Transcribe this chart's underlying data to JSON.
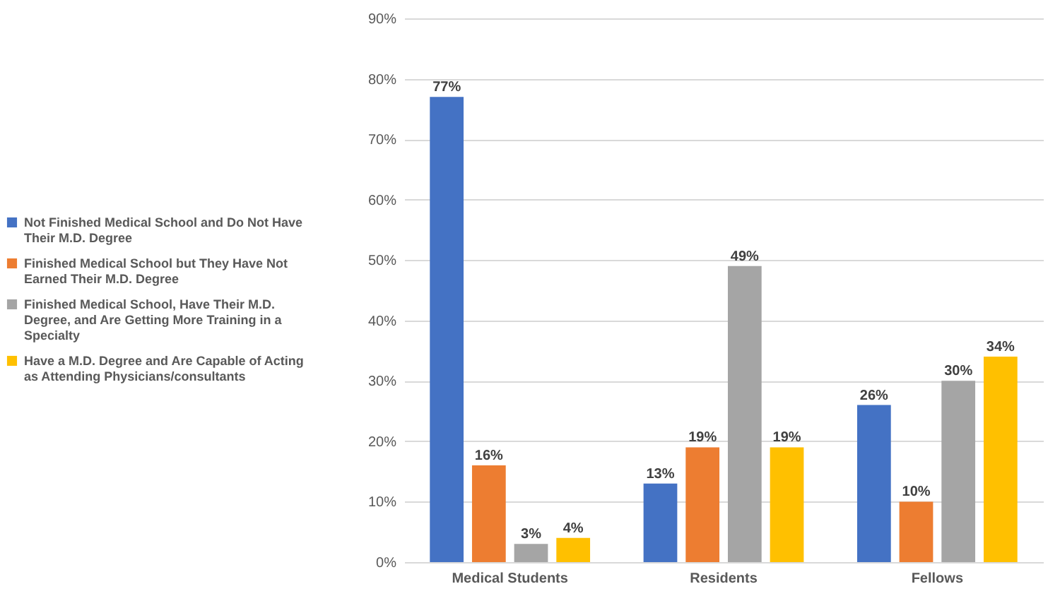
{
  "chart_data": {
    "type": "bar",
    "categories": [
      "Medical Students",
      "Residents",
      "Fellows"
    ],
    "series": [
      {
        "name": "Not Finished Medical School and Do Not Have Their M.D. Degree",
        "color": "#4472c4",
        "values": [
          77,
          13,
          26
        ],
        "value_labels": [
          "77%",
          "13%",
          "26%"
        ]
      },
      {
        "name": "Finished Medical School but They Have Not Earned Their M.D. Degree",
        "color": "#ed7d31",
        "values": [
          16,
          19,
          10
        ],
        "value_labels": [
          "16%",
          "19%",
          "10%"
        ]
      },
      {
        "name": "Finished Medical School, Have Their M.D. Degree, and Are Getting More Training in a Specialty",
        "color": "#a5a5a5",
        "values": [
          3,
          49,
          30
        ],
        "value_labels": [
          "3%",
          "49%",
          "30%"
        ]
      },
      {
        "name": "Have a M.D. Degree and Are Capable of Acting as Attending Physicians/consultants",
        "color": "#ffc000",
        "values": [
          4,
          19,
          34
        ],
        "value_labels": [
          "4%",
          "19%",
          "34%"
        ]
      }
    ],
    "ylim": [
      0,
      90
    ],
    "yticks": [
      {
        "value": 0,
        "label": "0%"
      },
      {
        "value": 10,
        "label": "10%"
      },
      {
        "value": 20,
        "label": "20%"
      },
      {
        "value": 30,
        "label": "30%"
      },
      {
        "value": 40,
        "label": "40%"
      },
      {
        "value": 50,
        "label": "50%"
      },
      {
        "value": 60,
        "label": "60%"
      },
      {
        "value": 70,
        "label": "70%"
      },
      {
        "value": 80,
        "label": "80%"
      },
      {
        "value": 90,
        "label": "90%"
      }
    ],
    "grid": "y",
    "legend": "left"
  }
}
